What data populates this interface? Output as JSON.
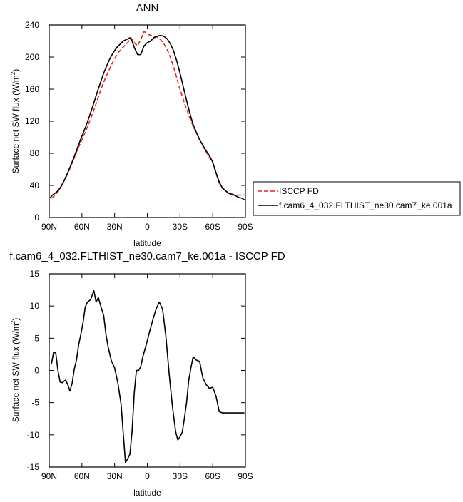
{
  "chart_data": [
    {
      "type": "line",
      "title": "ANN",
      "xlabel": "latitude",
      "ylabel": "Surface net SW flux (W/m²)",
      "ylabel_main": "Surface net SW flux (W/m",
      "ylabel_sup": "2",
      "ylabel_end": ")",
      "x_ticks": [
        90,
        60,
        30,
        0,
        -30,
        -60,
        -90
      ],
      "x_tick_labels": [
        "90N",
        "60N",
        "30N",
        "0",
        "30S",
        "60S",
        "90S"
      ],
      "xlim": [
        90,
        -90
      ],
      "y_ticks": [
        0,
        40,
        80,
        120,
        160,
        200,
        240
      ],
      "y_tick_labels": [
        "0",
        "40",
        "80",
        "120",
        "160",
        "200",
        "240"
      ],
      "ylim": [
        0,
        240
      ],
      "legend_position": "right",
      "series": [
        {
          "name": "ISCCP FD",
          "color": "#e8231d",
          "dash": true,
          "x": [
            88,
            86,
            84,
            82,
            80,
            78,
            75,
            72,
            69,
            66,
            63,
            60,
            57,
            54,
            51,
            48,
            45,
            42,
            39,
            36,
            33,
            30,
            27,
            24,
            21,
            18,
            15,
            12,
            9,
            6,
            3,
            0,
            -3,
            -6,
            -9,
            -12,
            -15,
            -18,
            -21,
            -24,
            -27,
            -30,
            -33,
            -36,
            -39,
            -42,
            -45,
            -48,
            -51,
            -54,
            -57,
            -60,
            -63,
            -66,
            -69,
            -72,
            -75,
            -78,
            -81,
            -84,
            -87,
            -89
          ],
          "y": [
            24,
            26,
            29,
            32,
            36,
            41,
            49,
            58,
            68,
            78,
            88,
            97,
            106,
            116,
            127,
            138,
            150,
            162,
            172,
            181,
            190,
            198,
            205,
            210,
            214,
            218,
            224,
            218,
            214,
            222,
            232,
            229,
            227,
            226,
            225,
            222,
            217,
            210,
            200,
            188,
            174,
            160,
            147,
            135,
            124,
            114,
            105,
            97,
            89,
            82,
            75,
            68,
            55,
            43,
            36,
            33,
            30,
            28,
            28,
            28,
            28,
            28
          ]
        },
        {
          "name": "f.cam6_4_032.FLTHIST_ne30.cam7_ke.001a",
          "color": "#000000",
          "dash": false,
          "x": [
            89,
            87,
            85,
            83,
            81,
            79,
            76,
            73,
            70,
            67,
            64,
            61,
            58,
            55,
            52,
            49,
            46,
            43,
            40,
            37,
            34,
            31,
            28,
            25,
            22,
            19,
            16,
            14,
            12,
            9,
            6,
            3,
            0,
            -3,
            -6,
            -9,
            -12,
            -15,
            -18,
            -21,
            -24,
            -27,
            -30,
            -33,
            -36,
            -39,
            -42,
            -45,
            -48,
            -51,
            -54,
            -57,
            -60,
            -63,
            -66,
            -69,
            -72,
            -75,
            -78,
            -81,
            -84,
            -87,
            -89
          ],
          "y": [
            25,
            28,
            30,
            32,
            35,
            39,
            47,
            56,
            66,
            76,
            87,
            98,
            108,
            119,
            131,
            143,
            156,
            168,
            180,
            190,
            199,
            206,
            212,
            216,
            220,
            222,
            224,
            220,
            212,
            203,
            203,
            214,
            218,
            220,
            224,
            226,
            227,
            226,
            223,
            217,
            208,
            195,
            180,
            163,
            146,
            130,
            116,
            106,
            97,
            90,
            83,
            77,
            69,
            56,
            44,
            37,
            33,
            30,
            29,
            27,
            25,
            24,
            22
          ]
        }
      ]
    },
    {
      "type": "line",
      "title": "f.cam6_4_032.FLTHIST_ne30.cam7_ke.001a - ISCCP FD",
      "xlabel": "latitude",
      "ylabel": "Surface net SW flux (W/m²)",
      "ylabel_main": "Surface net SW flux (W/m",
      "ylabel_sup": "2",
      "ylabel_end": ")",
      "x_ticks": [
        90,
        60,
        30,
        0,
        -30,
        -60,
        -90
      ],
      "x_tick_labels": [
        "90N",
        "60N",
        "30N",
        "0",
        "30S",
        "60S",
        "90S"
      ],
      "xlim": [
        90,
        -90
      ],
      "y_ticks": [
        -15,
        -10,
        -5,
        0,
        5,
        10,
        15
      ],
      "y_tick_labels": [
        "-15",
        "-10",
        "-5",
        "0",
        "5",
        "10",
        "15"
      ],
      "ylim": [
        -15,
        15
      ],
      "series": [
        {
          "name": "",
          "color": "#000000",
          "dash": false,
          "x": [
            88,
            86,
            84,
            82,
            80,
            78,
            75,
            73,
            71,
            69,
            67,
            65,
            63,
            61,
            59,
            57,
            55,
            52,
            49,
            47,
            45,
            42,
            40,
            38,
            36,
            33,
            30,
            27,
            24,
            22,
            20,
            18,
            16,
            14,
            12,
            10,
            8,
            6,
            4,
            1,
            -2,
            -5,
            -8,
            -11,
            -14,
            -17,
            -20,
            -23,
            -26,
            -28,
            -30,
            -32,
            -34,
            -36,
            -38,
            -40,
            -42,
            -45,
            -48,
            -51,
            -54,
            -57,
            -60,
            -63,
            -66,
            -69,
            -72,
            -75,
            -78,
            -81,
            -84,
            -87,
            -89
          ],
          "y": [
            1.0,
            2.8,
            2.7,
            0.0,
            -1.8,
            -1.9,
            -1.5,
            -2.2,
            -3.2,
            -2.0,
            0.2,
            1.6,
            4.0,
            5.6,
            7.4,
            9.8,
            10.6,
            11.0,
            12.4,
            10.6,
            11.3,
            9.6,
            8.5,
            5.7,
            3.7,
            1.5,
            0.4,
            -2.0,
            -5.3,
            -10.0,
            -14.3,
            -13.7,
            -13.0,
            -9.5,
            -3.5,
            0.0,
            0.0,
            0.6,
            2.2,
            4.0,
            6.0,
            7.8,
            9.5,
            10.6,
            9.5,
            5.3,
            -0.5,
            -5.5,
            -9.5,
            -10.8,
            -10.3,
            -9.6,
            -7.5,
            -5.0,
            -1.5,
            0.4,
            2.1,
            1.6,
            1.4,
            -1.2,
            -2.2,
            -2.8,
            -2.6,
            -4.0,
            -6.4,
            -6.6,
            -6.6,
            -6.6,
            -6.6,
            -6.6,
            -6.6,
            -6.6,
            -6.6
          ]
        }
      ]
    }
  ]
}
